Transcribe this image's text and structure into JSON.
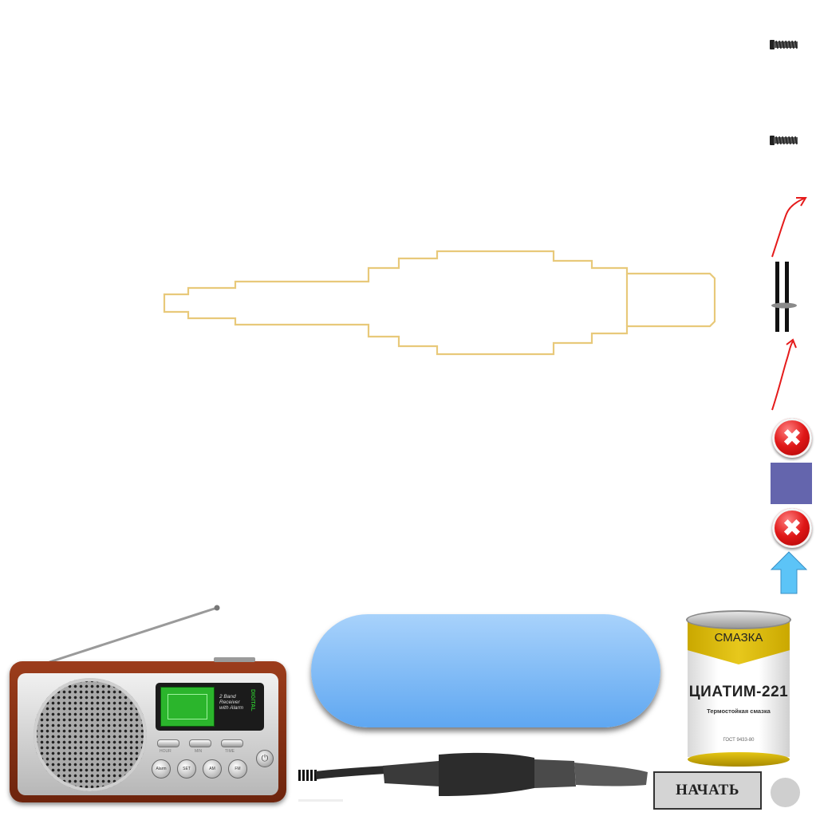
{
  "toolbar": {
    "items": [
      {
        "name": "screw-icon-top"
      },
      {
        "name": "screw-icon-bottom"
      },
      {
        "name": "insert-arrow-icon"
      },
      {
        "name": "shaft-gauge-icon"
      },
      {
        "name": "insert-arrow-icon-lower"
      },
      {
        "name": "close-button-1",
        "glyph": "✖"
      },
      {
        "name": "square-button",
        "color": "#6465ad"
      },
      {
        "name": "close-button-2",
        "glyph": "✖"
      },
      {
        "name": "up-arrow-button",
        "color": "#5cc4f7"
      }
    ]
  },
  "workpiece": {
    "outline_color": "#e8c97a"
  },
  "display": {
    "text": ""
  },
  "lubricant_can": {
    "band_label": "СМАЗКА",
    "title": "ЦИАТИМ-221",
    "subtitle": "Термостойкая смазка",
    "standard": "ГОСТ 9433-80",
    "band_color": "#e2c21a"
  },
  "radio": {
    "lcd_text_line1": "2 Band",
    "lcd_text_line2": "Receiver",
    "lcd_text_line3": "with Alarm",
    "brand_label": "DIGITAL",
    "key_labels": [
      "HOUR",
      "MIN",
      "TIME"
    ],
    "round_key_labels": [
      "Alarm",
      "SET",
      "AM",
      "FM"
    ],
    "power_symbol": "⏻"
  },
  "start_button": {
    "label": "НАЧАТЬ"
  },
  "status_indicator": {
    "color": "#cfcfcf"
  }
}
